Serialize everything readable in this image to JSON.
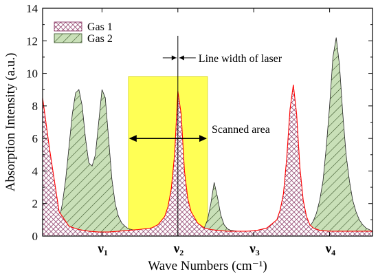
{
  "chart_data": {
    "type": "area",
    "xlabel": "Wave Numbers (cm⁻¹)",
    "ylabel": "Absorption Intensity (a.u.)",
    "ylim": [
      0,
      14
    ],
    "yticks": [
      0,
      2,
      4,
      6,
      8,
      10,
      12,
      14
    ],
    "xlim": [
      0,
      100
    ],
    "xticks": [
      {
        "label": "ν",
        "sub": "1",
        "x": 18
      },
      {
        "label": "ν",
        "sub": "2",
        "x": 41
      },
      {
        "label": "ν",
        "sub": "3",
        "x": 64
      },
      {
        "label": "ν",
        "sub": "4",
        "x": 87
      }
    ],
    "legend": {
      "position": "top-left"
    },
    "colors": {
      "gas1": "#8b1e5a",
      "gas2": "#2f5f1f",
      "gas2_fill": "#c9e0b8",
      "gas1_fill": "#8b1e5a",
      "line": "#ff0000",
      "scan": "#ffff55"
    },
    "series": [
      {
        "name": "Gas 1",
        "fill": "crosshatch",
        "x": [
          0,
          2,
          5,
          8,
          11,
          14,
          17,
          20,
          23,
          26,
          29,
          31,
          33,
          35,
          37,
          38,
          39,
          40,
          41,
          42,
          43,
          44,
          45,
          47,
          49,
          51,
          53,
          56,
          59,
          62,
          65,
          68,
          71,
          72,
          73,
          74,
          75,
          76,
          77,
          78,
          79,
          80,
          81,
          82,
          84,
          87,
          90,
          93,
          96,
          98,
          100
        ],
        "y": [
          8.5,
          5.5,
          1.5,
          0.6,
          0.4,
          0.3,
          0.25,
          0.25,
          0.3,
          0.35,
          0.4,
          0.45,
          0.5,
          0.7,
          1.2,
          1.8,
          2.9,
          5.0,
          8.9,
          7.5,
          4.0,
          2.3,
          1.5,
          0.8,
          0.5,
          0.4,
          0.35,
          0.3,
          0.3,
          0.3,
          0.35,
          0.5,
          1.0,
          1.6,
          2.6,
          4.8,
          7.8,
          9.3,
          7.5,
          4.2,
          2.2,
          1.2,
          0.7,
          0.5,
          0.35,
          0.3,
          0.3,
          0.3,
          0.3,
          0.3,
          0.3
        ]
      },
      {
        "name": "Gas 2",
        "fill": "diagonal",
        "x": [
          4,
          5,
          6,
          7,
          8,
          9,
          10,
          11,
          12,
          13,
          14,
          15,
          16,
          17,
          18,
          19,
          20,
          21,
          22,
          23,
          24,
          25,
          26,
          27,
          28,
          29,
          31,
          33,
          35,
          37,
          39,
          41,
          43,
          45,
          47,
          49,
          50,
          51,
          52,
          53,
          54,
          55,
          56,
          57,
          59,
          61,
          63,
          65,
          67,
          69,
          71,
          73,
          75,
          77,
          79,
          80,
          81,
          82,
          83,
          84,
          85,
          86,
          87,
          88,
          89,
          90,
          91,
          92,
          93,
          94,
          95,
          96,
          97,
          98,
          100
        ],
        "y": [
          0.4,
          1.0,
          2.0,
          3.5,
          5.5,
          7.5,
          8.8,
          9.0,
          8.0,
          6.0,
          4.5,
          4.3,
          5.0,
          7.0,
          9.0,
          8.5,
          6.0,
          3.5,
          2.0,
          1.2,
          0.8,
          0.6,
          0.45,
          0.4,
          0.35,
          0.3,
          0.3,
          0.3,
          0.3,
          0.3,
          0.3,
          0.3,
          0.3,
          0.3,
          0.3,
          0.5,
          1.0,
          2.0,
          3.3,
          2.4,
          1.3,
          0.7,
          0.45,
          0.35,
          0.3,
          0.3,
          0.3,
          0.3,
          0.3,
          0.3,
          0.3,
          0.3,
          0.3,
          0.3,
          0.3,
          0.4,
          0.6,
          0.9,
          1.4,
          2.2,
          3.4,
          5.5,
          8.0,
          11.0,
          12.2,
          10.5,
          7.5,
          5.0,
          3.4,
          2.2,
          1.5,
          1.0,
          0.7,
          0.5,
          0.3
        ]
      }
    ],
    "annotations": {
      "scanned_area": {
        "label": "Scanned area",
        "x_start": 26,
        "x_end": 50,
        "y_top": 9.8
      },
      "laser_line": {
        "label": "Line width of laser",
        "x": 41
      }
    }
  }
}
